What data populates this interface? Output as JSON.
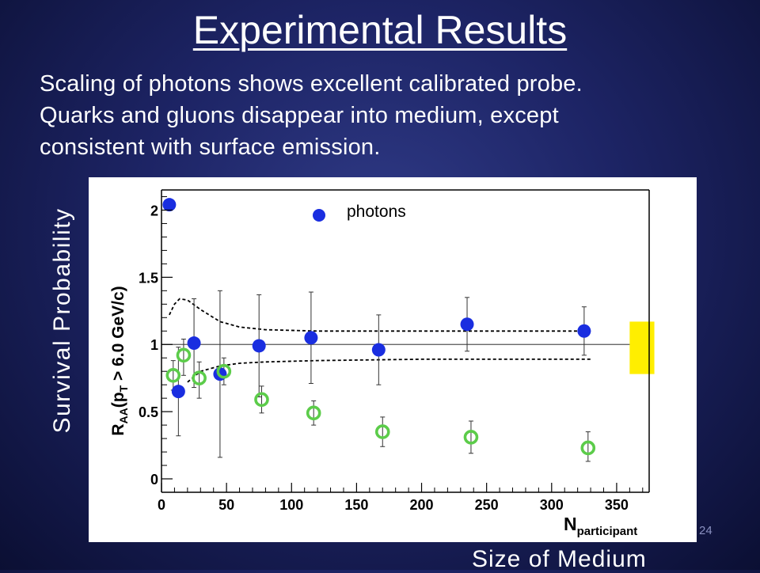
{
  "slide": {
    "title": "Experimental Results",
    "body_lines": [
      "Scaling of photons shows excellent calibrated probe.",
      "Quarks and gluons disappear into medium, except",
      "consistent with surface emission."
    ],
    "side_label": "Survival Probability",
    "bottom_label": "Size of Medium",
    "slide_number": "24"
  },
  "chart_data": {
    "type": "scatter",
    "ylabel_main": "R",
    "ylabel_sub": "AA",
    "ylabel_rest": "(p",
    "ylabel_sub2": "T",
    "ylabel_tail": " > 6.0 GeV/c)",
    "xlabel_main": "N",
    "xlabel_sub": "participant",
    "xlim": [
      0,
      375
    ],
    "ylim": [
      -0.1,
      2.15
    ],
    "x_ticks": [
      "0",
      "50",
      "100",
      "150",
      "200",
      "250",
      "300",
      "350"
    ],
    "x_tick_values": [
      0,
      50,
      100,
      150,
      200,
      250,
      300,
      350
    ],
    "y_ticks": [
      "0",
      "0.5",
      "1",
      "1.5",
      "2"
    ],
    "y_tick_values": [
      0,
      0.5,
      1,
      1.5,
      2
    ],
    "reference_line": 1.0,
    "legend": {
      "label": "photons",
      "placement": "top-center"
    },
    "series": [
      {
        "name": "photons",
        "marker": "filled-circle",
        "color": "#1a2ee0",
        "points": [
          {
            "x": 6,
            "y": 2.04,
            "err_lo": 0,
            "err_hi": 0
          },
          {
            "x": 13,
            "y": 0.65,
            "err_lo": 0.33,
            "err_hi": 0.33
          },
          {
            "x": 25,
            "y": 1.01,
            "err_lo": 0.33,
            "err_hi": 0.33
          },
          {
            "x": 45,
            "y": 0.78,
            "err_lo": 0.62,
            "err_hi": 0.62
          },
          {
            "x": 75,
            "y": 0.99,
            "err_lo": 0.38,
            "err_hi": 0.38
          },
          {
            "x": 115,
            "y": 1.05,
            "err_lo": 0.34,
            "err_hi": 0.34
          },
          {
            "x": 167,
            "y": 0.96,
            "err_lo": 0.26,
            "err_hi": 0.26
          },
          {
            "x": 235,
            "y": 1.15,
            "err_lo": 0.2,
            "err_hi": 0.2
          },
          {
            "x": 325,
            "y": 1.1,
            "err_lo": 0.18,
            "err_hi": 0.18
          }
        ]
      },
      {
        "marker": "open-circle",
        "color": "#5ccc4a",
        "points": [
          {
            "x": 9,
            "y": 0.77,
            "err_lo": 0.11,
            "err_hi": 0.11
          },
          {
            "x": 17,
            "y": 0.92,
            "err_lo": 0.15,
            "err_hi": 0.12
          },
          {
            "x": 29,
            "y": 0.75,
            "err_lo": 0.15,
            "err_hi": 0.12
          },
          {
            "x": 48,
            "y": 0.8,
            "err_lo": 0.1,
            "err_hi": 0.1
          },
          {
            "x": 77,
            "y": 0.59,
            "err_lo": 0.1,
            "err_hi": 0.1
          },
          {
            "x": 117,
            "y": 0.49,
            "err_lo": 0.09,
            "err_hi": 0.09
          },
          {
            "x": 170,
            "y": 0.35,
            "err_lo": 0.11,
            "err_hi": 0.11
          },
          {
            "x": 238,
            "y": 0.31,
            "err_lo": 0.12,
            "err_hi": 0.12
          },
          {
            "x": 328,
            "y": 0.23,
            "err_lo": 0.1,
            "err_hi": 0.12
          }
        ]
      }
    ],
    "band_upper": [
      [
        6,
        1.22
      ],
      [
        10,
        1.3
      ],
      [
        14,
        1.34
      ],
      [
        20,
        1.33
      ],
      [
        30,
        1.26
      ],
      [
        45,
        1.17
      ],
      [
        60,
        1.13
      ],
      [
        80,
        1.11
      ],
      [
        120,
        1.1
      ],
      [
        200,
        1.1
      ],
      [
        330,
        1.1
      ]
    ],
    "band_lower": [
      [
        20,
        0.72
      ],
      [
        30,
        0.8
      ],
      [
        45,
        0.84
      ],
      [
        60,
        0.86
      ],
      [
        80,
        0.87
      ],
      [
        120,
        0.88
      ],
      [
        200,
        0.89
      ],
      [
        330,
        0.89
      ]
    ],
    "norm_box": {
      "x0": 360,
      "x1": 379,
      "y0": 0.78,
      "y1": 1.17,
      "color": "#ffee00"
    }
  }
}
